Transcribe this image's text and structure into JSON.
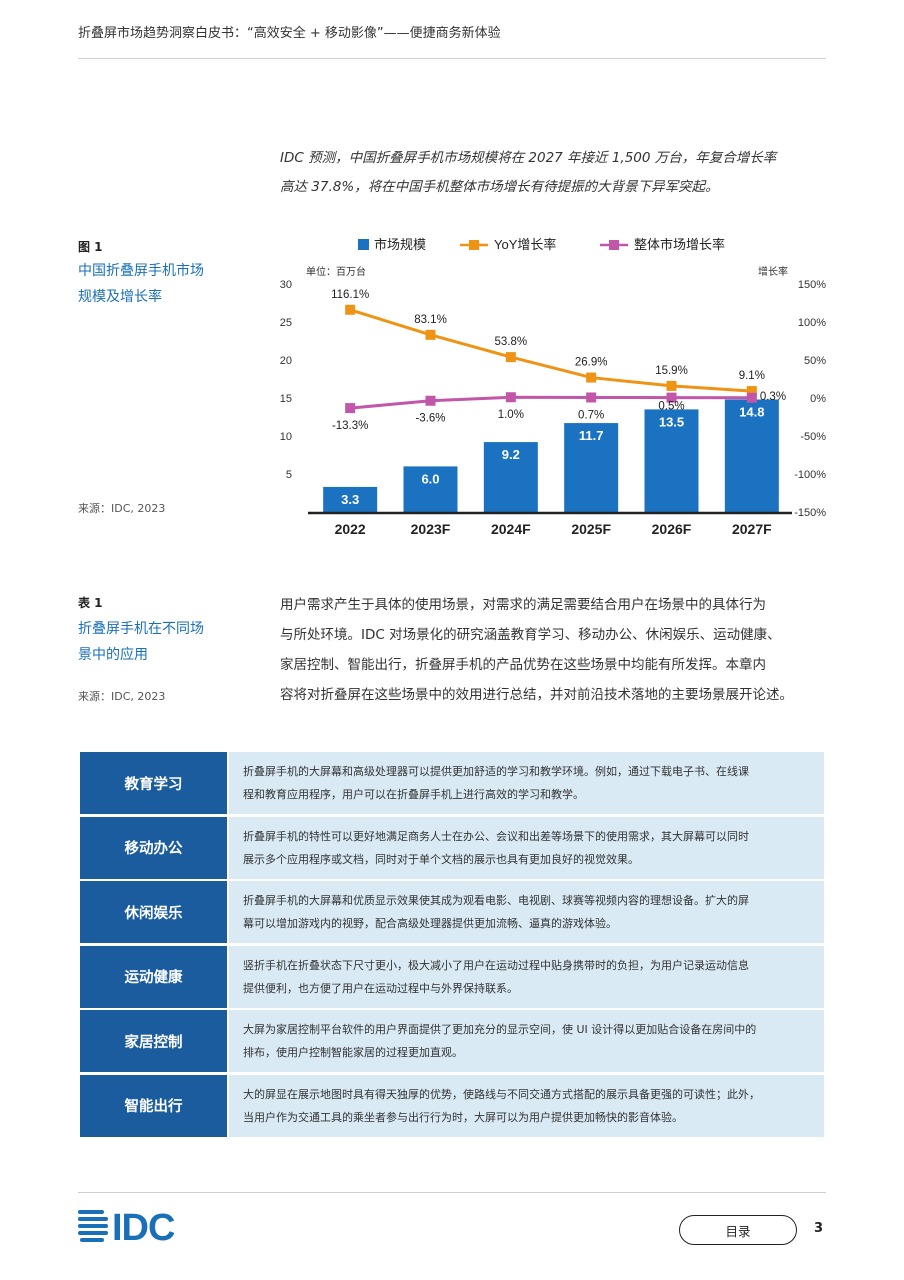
{
  "header": {
    "title": "折叠屏市场趋势洞察白皮书：“高效安全 + 移动影像”——便捷商务新体验"
  },
  "intro": {
    "lines": [
      "IDC 预测，中国折叠屏手机市场规模将在 2027 年接近 1,500 万台，年复合增长率",
      "高达 37.8%，将在中国手机整体市场增长有待提振的大背景下异军突起。"
    ]
  },
  "figure": {
    "label": "图 1",
    "title_lines": [
      "中国折叠屏手机市场",
      "规模及增长率"
    ],
    "source": "来源：IDC, 2023"
  },
  "chart_data": {
    "type": "bar",
    "categories": [
      "2022",
      "2023F",
      "2024F",
      "2025F",
      "2026F",
      "2027F"
    ],
    "series": [
      {
        "name": "市场规模",
        "type": "bar",
        "axis": "left",
        "color": "#1b72c0",
        "values": [
          3.3,
          6.0,
          9.2,
          11.7,
          13.5,
          14.8
        ],
        "labels": [
          "3.3",
          "6.0",
          "9.2",
          "11.7",
          "13.5",
          "14.8"
        ]
      },
      {
        "name": "YoY增长率",
        "type": "line",
        "axis": "right",
        "color": "#ef9315",
        "values": [
          116.1,
          83.1,
          53.8,
          26.9,
          15.9,
          9.1
        ],
        "labels": [
          "116.1%",
          "83.1%",
          "53.8%",
          "26.9%",
          "15.9%",
          "9.1%"
        ]
      },
      {
        "name": "整体市场增长率",
        "type": "line",
        "axis": "right",
        "color": "#c256a8",
        "values": [
          -13.3,
          -3.6,
          1.0,
          0.7,
          0.5,
          0.3
        ],
        "labels": [
          "-13.3%",
          "-3.6%",
          "1.0%",
          "0.7%",
          "0.5%",
          "0.3%"
        ]
      }
    ],
    "left_axis": {
      "unit_label": "单位：百万台",
      "ylim": [
        0,
        30
      ],
      "ticks": [
        5,
        10,
        15,
        20,
        25,
        30
      ],
      "tick_labels": [
        "5",
        "10",
        "15",
        "20",
        "25",
        "30"
      ]
    },
    "right_axis": {
      "unit_label": "增长率",
      "ylim": [
        -150,
        150
      ],
      "ticks": [
        -150,
        -100,
        -50,
        0,
        50,
        100,
        150
      ],
      "tick_labels": [
        "-150%",
        "-100%",
        "-50%",
        "0%",
        "50%",
        "100%",
        "150%"
      ]
    },
    "legend_position": "top",
    "grid": false,
    "title": "",
    "xlabel": "",
    "ylabel": ""
  },
  "table_caption": {
    "label": "表 1",
    "title_lines": [
      "折叠屏手机在不同场",
      "景中的应用"
    ],
    "source": "来源：IDC, 2023"
  },
  "paragraph": {
    "lines": [
      "用户需求产生于具体的使用场景，对需求的满足需要结合用户在场景中的具体行为",
      "与所处环境。IDC 对场景化的研究涵盖教育学习、移动办公、休闲娱乐、运动健康、",
      "家居控制、智能出行，折叠屏手机的产品优势在这些场景中均能有所发挥。本章内",
      "容将对折叠屏在这些场景中的效用进行总结，并对前沿技术落地的主要场景展开论述。"
    ]
  },
  "table": {
    "rows": [
      {
        "label": "教育学习",
        "lines": [
          "折叠屏手机的大屏幕和高级处理器可以提供更加舒适的学习和教学环境。例如，通过下载电子书、在线课",
          "程和教育应用程序，用户可以在折叠屏手机上进行高效的学习和教学。"
        ]
      },
      {
        "label": "移动办公",
        "lines": [
          "折叠屏手机的特性可以更好地满足商务人士在办公、会议和出差等场景下的使用需求，其大屏幕可以同时",
          "展示多个应用程序或文档，同时对于单个文档的展示也具有更加良好的视觉效果。"
        ]
      },
      {
        "label": "休闲娱乐",
        "lines": [
          "折叠屏手机的大屏幕和优质显示效果使其成为观看电影、电视剧、球赛等视频内容的理想设备。扩大的屏",
          "幕可以增加游戏内的视野，配合高级处理器提供更加流畅、逼真的游戏体验。"
        ]
      },
      {
        "label": "运动健康",
        "lines": [
          "竖折手机在折叠状态下尺寸更小，极大减小了用户在运动过程中贴身携带时的负担，为用户记录运动信息",
          "提供便利，也方便了用户在运动过程中与外界保持联系。"
        ]
      },
      {
        "label": "家居控制",
        "lines": [
          "大屏为家居控制平台软件的用户界面提供了更加充分的显示空间，使 UI 设计得以更加贴合设备在房间中的",
          "排布，使用户控制智能家居的过程更加直观。"
        ]
      },
      {
        "label": "智能出行",
        "lines": [
          "大的屏显在展示地图时具有得天独厚的优势，使路线与不同交通方式搭配的展示具备更强的可读性；此外，",
          "当用户作为交通工具的乘坐者参与出行行为时，大屏可以为用户提供更加畅快的影音体验。"
        ]
      }
    ]
  },
  "footer": {
    "logo_text": "IDC",
    "toc_label": "目录",
    "page_number": "3"
  },
  "colors": {
    "accent_blue": "#1a70b8",
    "table_label_bg": "#1b5c9e",
    "table_cell_bg": "#d9eaf5"
  }
}
